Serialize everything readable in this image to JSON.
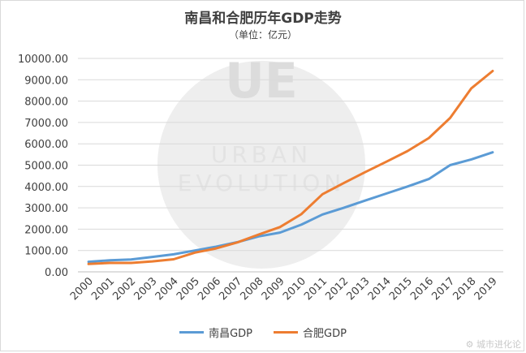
{
  "chart_data": {
    "type": "line",
    "title": "南昌和合肥历年GDP走势",
    "subtitle": "（单位：亿元）",
    "categories": [
      "2000",
      "2001",
      "2002",
      "2003",
      "2004",
      "2005",
      "2006",
      "2007",
      "2008",
      "2009",
      "2010",
      "2011",
      "2012",
      "2013",
      "2014",
      "2015",
      "2016",
      "2017",
      "2018",
      "2019"
    ],
    "y_ticks": [
      "0.00",
      "1000.00",
      "2000.00",
      "3000.00",
      "4000.00",
      "5000.00",
      "6000.00",
      "7000.00",
      "8000.00",
      "9000.00",
      "10000.00"
    ],
    "ylim": [
      0,
      10000
    ],
    "grid": true,
    "legend_position": "bottom",
    "series": [
      {
        "name": "南昌GDP",
        "color": "#5B9BD5",
        "values": [
          470,
          540,
          580,
          700,
          820,
          1000,
          1180,
          1390,
          1660,
          1840,
          2210,
          2690,
          3000,
          3340,
          3670,
          4000,
          4350,
          5000,
          5270,
          5600
        ]
      },
      {
        "name": "合肥GDP",
        "color": "#ED7D31",
        "values": [
          370,
          420,
          420,
          490,
          590,
          900,
          1100,
          1380,
          1750,
          2100,
          2700,
          3640,
          4160,
          4670,
          5160,
          5660,
          6270,
          7210,
          8600,
          9410
        ]
      }
    ]
  },
  "watermark": {
    "logo_letters": "UE",
    "text_line1": "URBAN",
    "text_line2": "EVOLUTION",
    "corner_text": "城市进化论"
  }
}
